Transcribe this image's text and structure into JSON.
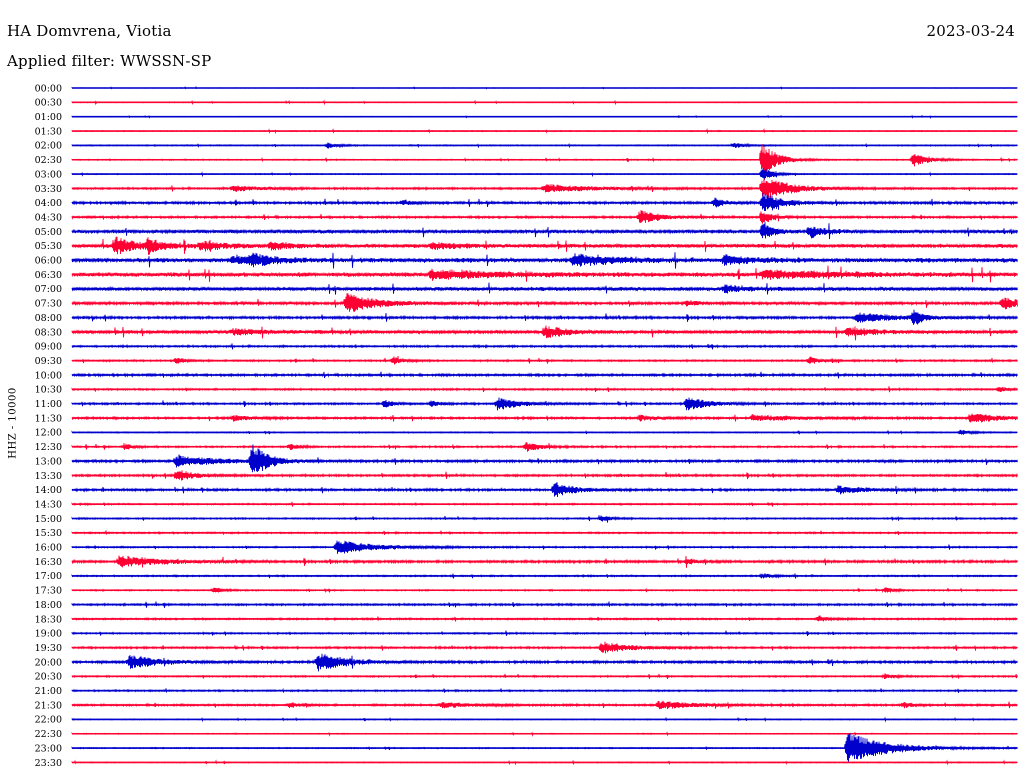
{
  "header": {
    "station": "HA Domvrena, Viotia",
    "date": "2023-03-24",
    "filter": "Applied filter: WWSSN-SP"
  },
  "chart_data": {
    "type": "helicorder",
    "ylabel": "HHZ - 10000",
    "trace_colors": [
      "#0000cc",
      "#ff0033"
    ],
    "rows": [
      "00:00",
      "00:30",
      "01:00",
      "01:30",
      "02:00",
      "02:30",
      "03:00",
      "03:30",
      "04:00",
      "04:30",
      "05:00",
      "05:30",
      "06:00",
      "06:30",
      "07:00",
      "07:30",
      "08:00",
      "08:30",
      "09:00",
      "09:30",
      "10:00",
      "10:30",
      "11:00",
      "11:30",
      "12:00",
      "12:30",
      "13:00",
      "13:30",
      "14:00",
      "14:30",
      "15:00",
      "15:30",
      "16:00",
      "16:30",
      "17:00",
      "17:30",
      "18:00",
      "18:30",
      "19:00",
      "19:30",
      "20:00",
      "20:30",
      "21:00",
      "21:30",
      "22:00",
      "22:30",
      "23:00",
      "23:30"
    ],
    "noise": [
      0.3,
      0.4,
      0.3,
      0.5,
      0.6,
      0.6,
      0.5,
      1.0,
      1.3,
      1.1,
      2.0,
      2.1,
      2.6,
      2.4,
      2.1,
      1.6,
      1.3,
      1.9,
      1.0,
      0.9,
      1.2,
      0.9,
      1.0,
      1.1,
      0.6,
      0.9,
      1.3,
      1.1,
      1.2,
      0.8,
      0.8,
      0.8,
      0.8,
      1.3,
      0.8,
      0.7,
      1.0,
      0.9,
      0.8,
      1.0,
      1.3,
      0.8,
      0.8,
      1.0,
      0.5,
      0.5,
      0.6,
      0.5
    ],
    "events": [
      {
        "row": 4,
        "x": 0.27,
        "amp": 3,
        "dur": 0.01
      },
      {
        "row": 4,
        "x": 0.7,
        "amp": 3,
        "dur": 0.01
      },
      {
        "row": 5,
        "x": 0.73,
        "amp": 18,
        "dur": 0.015
      },
      {
        "row": 5,
        "x": 0.89,
        "amp": 7,
        "dur": 0.015
      },
      {
        "row": 6,
        "x": 0.73,
        "amp": 8,
        "dur": 0.01
      },
      {
        "row": 7,
        "x": 0.73,
        "amp": 12,
        "dur": 0.03
      },
      {
        "row": 7,
        "x": 0.17,
        "amp": 3,
        "dur": 0.03
      },
      {
        "row": 7,
        "x": 0.5,
        "amp": 4,
        "dur": 0.05
      },
      {
        "row": 8,
        "x": 0.73,
        "amp": 10,
        "dur": 0.02
      },
      {
        "row": 8,
        "x": 0.68,
        "amp": 5,
        "dur": 0.01
      },
      {
        "row": 8,
        "x": 0.35,
        "amp": 3,
        "dur": 0.01
      },
      {
        "row": 9,
        "x": 0.73,
        "amp": 8,
        "dur": 0.01
      },
      {
        "row": 9,
        "x": 0.6,
        "amp": 7,
        "dur": 0.02
      },
      {
        "row": 10,
        "x": 0.73,
        "amp": 9,
        "dur": 0.01
      },
      {
        "row": 10,
        "x": 0.78,
        "amp": 6,
        "dur": 0.015
      },
      {
        "row": 11,
        "x": 0.045,
        "amp": 9,
        "dur": 0.02
      },
      {
        "row": 11,
        "x": 0.08,
        "amp": 6,
        "dur": 0.02
      },
      {
        "row": 11,
        "x": 0.135,
        "amp": 4,
        "dur": 0.03
      },
      {
        "row": 11,
        "x": 0.21,
        "amp": 3,
        "dur": 0.03
      },
      {
        "row": 11,
        "x": 0.38,
        "amp": 3,
        "dur": 0.03
      },
      {
        "row": 12,
        "x": 0.53,
        "amp": 6,
        "dur": 0.04
      },
      {
        "row": 12,
        "x": 0.17,
        "amp": 4,
        "dur": 0.03
      },
      {
        "row": 12,
        "x": 0.19,
        "amp": 5,
        "dur": 0.02
      },
      {
        "row": 12,
        "x": 0.69,
        "amp": 4,
        "dur": 0.03
      },
      {
        "row": 13,
        "x": 0.38,
        "amp": 4,
        "dur": 0.08
      },
      {
        "row": 13,
        "x": 0.73,
        "amp": 4,
        "dur": 0.08
      },
      {
        "row": 14,
        "x": 0.69,
        "amp": 4,
        "dur": 0.02
      },
      {
        "row": 15,
        "x": 0.29,
        "amp": 10,
        "dur": 0.03
      },
      {
        "row": 15,
        "x": 0.65,
        "amp": 3,
        "dur": 0.01
      },
      {
        "row": 15,
        "x": 0.985,
        "amp": 6,
        "dur": 0.02
      },
      {
        "row": 16,
        "x": 0.83,
        "amp": 5,
        "dur": 0.04
      },
      {
        "row": 16,
        "x": 0.89,
        "amp": 7,
        "dur": 0.01
      },
      {
        "row": 17,
        "x": 0.5,
        "amp": 6,
        "dur": 0.02
      },
      {
        "row": 17,
        "x": 0.82,
        "amp": 4,
        "dur": 0.03
      },
      {
        "row": 17,
        "x": 0.17,
        "amp": 3,
        "dur": 0.03
      },
      {
        "row": 19,
        "x": 0.34,
        "amp": 4,
        "dur": 0.01
      },
      {
        "row": 19,
        "x": 0.78,
        "amp": 4,
        "dur": 0.01
      },
      {
        "row": 19,
        "x": 0.11,
        "amp": 3,
        "dur": 0.01
      },
      {
        "row": 21,
        "x": 0.98,
        "amp": 3,
        "dur": 0.01
      },
      {
        "row": 22,
        "x": 0.45,
        "amp": 7,
        "dur": 0.02
      },
      {
        "row": 22,
        "x": 0.65,
        "amp": 8,
        "dur": 0.02
      },
      {
        "row": 22,
        "x": 0.33,
        "amp": 4,
        "dur": 0.01
      },
      {
        "row": 22,
        "x": 0.38,
        "amp": 3,
        "dur": 0.01
      },
      {
        "row": 23,
        "x": 0.95,
        "amp": 5,
        "dur": 0.03
      },
      {
        "row": 23,
        "x": 0.17,
        "amp": 3,
        "dur": 0.02
      },
      {
        "row": 23,
        "x": 0.6,
        "amp": 3,
        "dur": 0.02
      },
      {
        "row": 23,
        "x": 0.72,
        "amp": 3,
        "dur": 0.05
      },
      {
        "row": 24,
        "x": 0.94,
        "amp": 3,
        "dur": 0.01
      },
      {
        "row": 25,
        "x": 0.48,
        "amp": 5,
        "dur": 0.015
      },
      {
        "row": 25,
        "x": 0.23,
        "amp": 3,
        "dur": 0.01
      },
      {
        "row": 25,
        "x": 0.055,
        "amp": 3,
        "dur": 0.01
      },
      {
        "row": 26,
        "x": 0.19,
        "amp": 18,
        "dur": 0.015
      },
      {
        "row": 26,
        "x": 0.11,
        "amp": 6,
        "dur": 0.04
      },
      {
        "row": 27,
        "x": 0.11,
        "amp": 6,
        "dur": 0.02
      },
      {
        "row": 28,
        "x": 0.51,
        "amp": 8,
        "dur": 0.02
      },
      {
        "row": 28,
        "x": 0.81,
        "amp": 4,
        "dur": 0.03
      },
      {
        "row": 30,
        "x": 0.56,
        "amp": 3,
        "dur": 0.01
      },
      {
        "row": 32,
        "x": 0.28,
        "amp": 7,
        "dur": 0.04
      },
      {
        "row": 33,
        "x": 0.05,
        "amp": 6,
        "dur": 0.04
      },
      {
        "row": 33,
        "x": 0.65,
        "amp": 3,
        "dur": 0.01
      },
      {
        "row": 34,
        "x": 0.73,
        "amp": 3,
        "dur": 0.01
      },
      {
        "row": 35,
        "x": 0.15,
        "amp": 3,
        "dur": 0.01
      },
      {
        "row": 35,
        "x": 0.86,
        "amp": 3,
        "dur": 0.01
      },
      {
        "row": 37,
        "x": 0.79,
        "amp": 3,
        "dur": 0.01
      },
      {
        "row": 39,
        "x": 0.56,
        "amp": 6,
        "dur": 0.03
      },
      {
        "row": 40,
        "x": 0.06,
        "amp": 7,
        "dur": 0.03
      },
      {
        "row": 40,
        "x": 0.26,
        "amp": 9,
        "dur": 0.03
      },
      {
        "row": 41,
        "x": 0.86,
        "amp": 3,
        "dur": 0.01
      },
      {
        "row": 43,
        "x": 0.62,
        "amp": 4,
        "dur": 0.04
      },
      {
        "row": 43,
        "x": 0.23,
        "amp": 3,
        "dur": 0.01
      },
      {
        "row": 43,
        "x": 0.88,
        "amp": 3,
        "dur": 0.01
      },
      {
        "row": 43,
        "x": 0.39,
        "amp": 3,
        "dur": 0.03
      },
      {
        "row": 46,
        "x": 0.82,
        "amp": 16,
        "dur": 0.04
      }
    ]
  }
}
